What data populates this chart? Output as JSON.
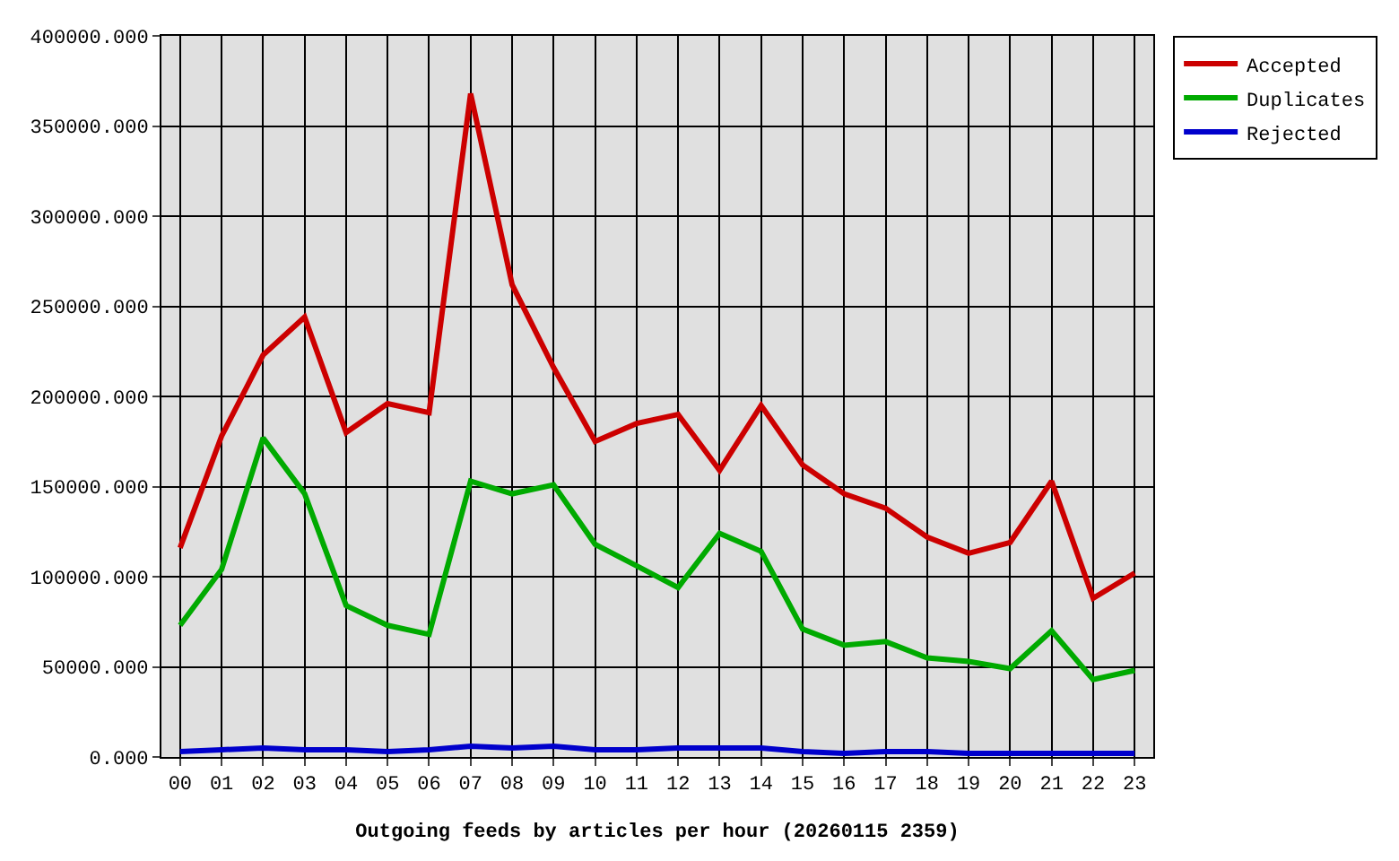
{
  "chart_data": {
    "type": "line",
    "xlabel": "Outgoing feeds by articles per hour (20260115 2359)",
    "categories": [
      "00",
      "01",
      "02",
      "03",
      "04",
      "05",
      "06",
      "07",
      "08",
      "09",
      "10",
      "11",
      "12",
      "13",
      "14",
      "15",
      "16",
      "17",
      "18",
      "19",
      "20",
      "21",
      "22",
      "23"
    ],
    "series": [
      {
        "name": "Accepted",
        "color": "#cc0000",
        "values": [
          116000,
          178000,
          223000,
          244000,
          180000,
          196000,
          191000,
          368000,
          262000,
          216000,
          175000,
          185000,
          190000,
          159000,
          195000,
          162000,
          146000,
          138000,
          122000,
          113000,
          119000,
          153000,
          88000,
          102000
        ]
      },
      {
        "name": "Duplicates",
        "color": "#00aa00",
        "values": [
          73000,
          104000,
          177000,
          146000,
          84000,
          73000,
          68000,
          153000,
          146000,
          151000,
          118000,
          106000,
          94000,
          124000,
          114000,
          71000,
          62000,
          64000,
          55000,
          53000,
          49000,
          70000,
          43000,
          48000
        ]
      },
      {
        "name": "Rejected",
        "color": "#0000cc",
        "values": [
          3000,
          4000,
          5000,
          4000,
          4000,
          3000,
          4000,
          6000,
          5000,
          6000,
          4000,
          4000,
          5000,
          5000,
          5000,
          3000,
          2000,
          3000,
          3000,
          2000,
          2000,
          2000,
          2000,
          2000
        ]
      }
    ],
    "ylim": [
      0,
      400000
    ],
    "yticks": [
      {
        "value": 0,
        "label": "0.000"
      },
      {
        "value": 50000,
        "label": "50000.000"
      },
      {
        "value": 100000,
        "label": "100000.000"
      },
      {
        "value": 150000,
        "label": "150000.000"
      },
      {
        "value": 200000,
        "label": "200000.000"
      },
      {
        "value": 250000,
        "label": "250000.000"
      },
      {
        "value": 300000,
        "label": "300000.000"
      },
      {
        "value": 350000,
        "label": "350000.000"
      },
      {
        "value": 400000,
        "label": "400000.000"
      }
    ],
    "grid": true,
    "legend": "top right",
    "line_style": "solid"
  }
}
